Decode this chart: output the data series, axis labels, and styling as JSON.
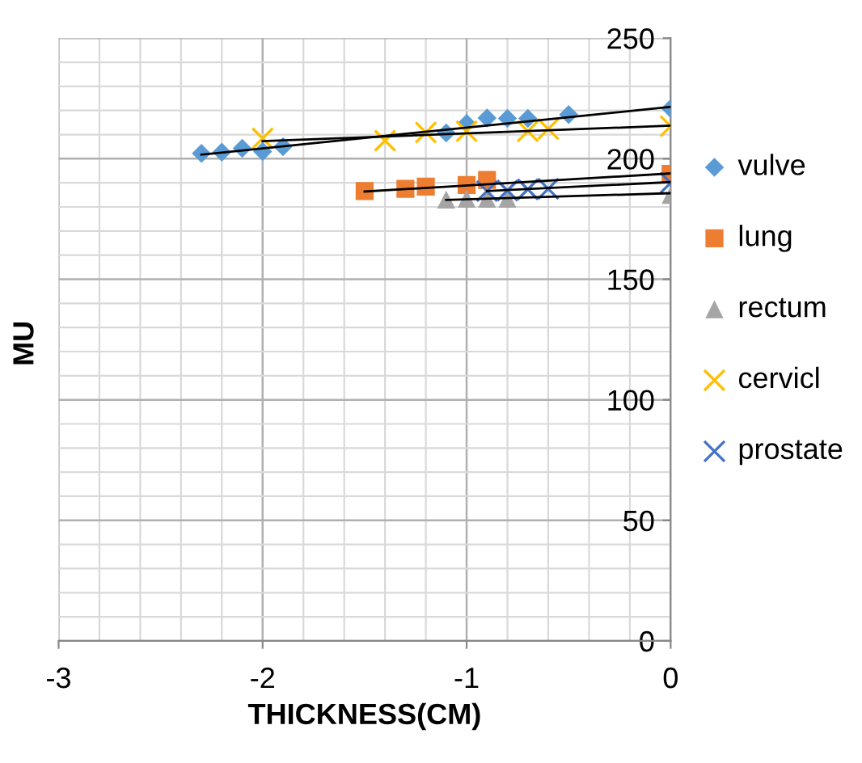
{
  "chart_data": {
    "type": "scatter",
    "xlabel": "THICKNESS(CM)",
    "ylabel": "MU",
    "xlim": [
      -3,
      0
    ],
    "ylim": [
      0,
      250
    ],
    "xticks": [
      -3,
      -2,
      -1,
      0
    ],
    "yticks": [
      0,
      50,
      100,
      150,
      200,
      250
    ],
    "grid": true,
    "legend": "right",
    "series": [
      {
        "name": "vulve",
        "color": "#5b9bd5",
        "marker": "diamond",
        "x": [
          -2.3,
          -2.2,
          -2.1,
          -2.0,
          -1.9,
          -1.1,
          -1.0,
          -0.9,
          -0.8,
          -0.7,
          -0.5,
          0
        ],
        "values": [
          202.2,
          202.7,
          204.3,
          203,
          205,
          210.7,
          214.6,
          216.9,
          216.7,
          216.7,
          218.3,
          220.8
        ]
      },
      {
        "name": "lung",
        "color": "#ed7d31",
        "marker": "square",
        "x": [
          -1.5,
          -1.3,
          -1.2,
          -1.0,
          -0.9,
          0
        ],
        "values": [
          186.6,
          187.5,
          188.4,
          189.1,
          191.2,
          193.7
        ]
      },
      {
        "name": "rectum",
        "color": "#a5a5a5",
        "marker": "triangle",
        "x": [
          -1.1,
          -1.0,
          -0.9,
          -0.8,
          0
        ],
        "values": [
          183.1,
          183.4,
          183.4,
          183.4,
          185
        ]
      },
      {
        "name": "cervicl",
        "color": "#ffc000",
        "marker": "cross",
        "x": [
          -2.0,
          -1.4,
          -1.2,
          -1.0,
          -0.7,
          -0.6,
          0
        ],
        "values": [
          208.4,
          207.5,
          210.9,
          211.4,
          211.4,
          212.3,
          213.5
        ]
      },
      {
        "name": "prostate",
        "color": "#4472c4",
        "marker": "cross",
        "x": [
          -0.9,
          -0.8,
          -0.7,
          -0.6,
          0
        ],
        "values": [
          186.6,
          186.8,
          187.3,
          187.5,
          190
        ]
      },
      {
        "type": "line",
        "color": "#000000",
        "x": [
          -2.3,
          0
        ],
        "values": [
          201.7,
          221.5
        ]
      },
      {
        "type": "line",
        "color": "#000000",
        "x": [
          -1.5,
          0
        ],
        "values": [
          186.4,
          193.9
        ]
      },
      {
        "type": "line",
        "color": "#000000",
        "x": [
          -1.1,
          0
        ],
        "values": [
          182.9,
          185.7
        ]
      },
      {
        "type": "line",
        "color": "#000000",
        "x": [
          -2.0,
          0
        ],
        "values": [
          207.3,
          213.7
        ]
      },
      {
        "type": "line",
        "color": "#000000",
        "x": [
          -0.9,
          0
        ],
        "values": [
          186.6,
          190.3
        ]
      }
    ]
  }
}
